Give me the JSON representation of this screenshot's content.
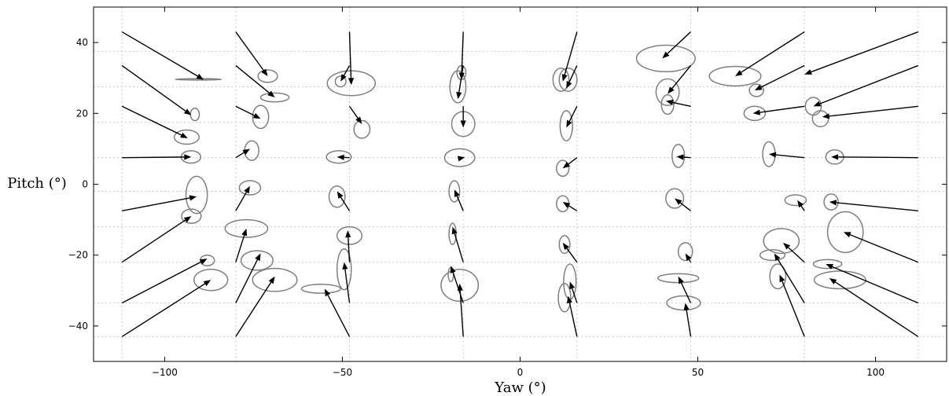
{
  "chart_data": {
    "type": "scatter",
    "xlabel": "Yaw (°)",
    "ylabel": "Pitch (°)",
    "xlim": [
      -120,
      120
    ],
    "ylim": [
      -50,
      50
    ],
    "xticks": [
      -100,
      -50,
      0,
      50,
      100
    ],
    "yticks": [
      -40,
      -20,
      0,
      20,
      40
    ],
    "xtick_labels": [
      "−100",
      "−50",
      "0",
      "50",
      "100"
    ],
    "ytick_labels": [
      "−40",
      "−20",
      "0",
      "20",
      "40"
    ],
    "grid": true,
    "grid_x": [
      -112,
      -80,
      -48,
      -16,
      16,
      48,
      80,
      112
    ],
    "grid_y": [
      -43,
      -33.5,
      -22,
      -12,
      -2,
      7.5,
      17.5,
      27.5,
      37.5
    ],
    "colors": {
      "arrow": "#000000",
      "ellipse": "#7f7f7f",
      "grid": "#cccccc"
    },
    "columns": [
      {
        "yaw_start": -112,
        "vectors": [
          {
            "pitch_start": 43,
            "to": [
              -89,
              29.5
            ],
            "ellipse": [
              -90.5,
              29.6,
              13,
              0.4
            ]
          },
          {
            "pitch_start": 33.5,
            "to": [
              -92.5,
              19.5
            ],
            "ellipse": [
              -91.5,
              19.7,
              2.5,
              3.5
            ]
          },
          {
            "pitch_start": 22,
            "to": [
              -93.5,
              13
            ],
            "ellipse": [
              -93.8,
              13.3,
              7,
              4
            ]
          },
          {
            "pitch_start": 7.5,
            "to": [
              -92.5,
              7.7
            ],
            "ellipse": [
              -92.6,
              7.7,
              5.5,
              3.5
            ]
          },
          {
            "pitch_start": -7.5,
            "to": [
              -91,
              -3.5
            ],
            "ellipse": [
              -91,
              -3,
              6,
              10.5
            ]
          },
          {
            "pitch_start": -22,
            "to": [
              -92.5,
              -9
            ],
            "ellipse": [
              -92.5,
              -9,
              5.5,
              4
            ]
          },
          {
            "pitch_start": -33.5,
            "to": [
              -88,
              -21
            ],
            "ellipse": [
              -88,
              -21.5,
              4,
              3
            ]
          },
          {
            "pitch_start": -43,
            "to": [
              -87,
              -27
            ],
            "ellipse": [
              -87,
              -27,
              9.5,
              6
            ]
          }
        ]
      },
      {
        "yaw_start": -80,
        "vectors": [
          {
            "pitch_start": 43,
            "to": [
              -71,
              30.5
            ],
            "ellipse": [
              -71,
              30.5,
              5.5,
              3.5
            ]
          },
          {
            "pitch_start": 33.5,
            "to": [
              -69,
              24.5
            ],
            "ellipse": [
              -69,
              24.5,
              8,
              2.5
            ]
          },
          {
            "pitch_start": 22,
            "to": [
              -73,
              18.5
            ],
            "ellipse": [
              -73,
              19,
              4.5,
              6.5
            ]
          },
          {
            "pitch_start": 7.5,
            "to": [
              -76,
              10
            ],
            "ellipse": [
              -75.5,
              9.5,
              4,
              5.5
            ]
          },
          {
            "pitch_start": -7.5,
            "to": [
              -76,
              -0.5
            ],
            "ellipse": [
              -76,
              -1,
              6,
              4
            ]
          },
          {
            "pitch_start": -22,
            "to": [
              -77,
              -12.5
            ],
            "ellipse": [
              -77,
              -12.5,
              12,
              5
            ]
          },
          {
            "pitch_start": -33.5,
            "to": [
              -73,
              -19.5
            ],
            "ellipse": [
              -74,
              -21.5,
              9,
              5.5
            ]
          },
          {
            "pitch_start": -43,
            "to": [
              -69,
              -26
            ],
            "ellipse": [
              -69,
              -27,
              12.5,
              6.5
            ]
          }
        ]
      },
      {
        "yaw_start": -48,
        "vectors": [
          {
            "pitch_start": 43,
            "to": [
              -47.5,
              28
            ],
            "ellipse": [
              -47.5,
              28.5,
              13.5,
              7
            ]
          },
          {
            "pitch_start": 33.5,
            "to": [
              -50.5,
              29
            ],
            "ellipse": [
              -50.5,
              29,
              3,
              3
            ]
          },
          {
            "pitch_start": 22,
            "to": [
              -44.5,
              17
            ],
            "ellipse": [
              -44.5,
              15.5,
              4.5,
              5
            ]
          },
          {
            "pitch_start": 7.5,
            "to": [
              -51.5,
              7.7
            ],
            "ellipse": [
              -51,
              7.7,
              7,
              3.5
            ]
          },
          {
            "pitch_start": -7.5,
            "to": [
              -51.5,
              -2
            ],
            "ellipse": [
              -51.5,
              -3.5,
              4.5,
              6
            ]
          },
          {
            "pitch_start": -22,
            "to": [
              -48.5,
              -13
            ],
            "ellipse": [
              -48,
              -14.5,
              7,
              5
            ]
          },
          {
            "pitch_start": -33.5,
            "to": [
              -49.5,
              -22
            ],
            "ellipse": [
              -49.5,
              -24,
              4,
              11.5
            ]
          },
          {
            "pitch_start": -43,
            "to": [
              -55,
              -29.5
            ],
            "ellipse": [
              -56,
              -29.5,
              11,
              2.5
            ]
          }
        ]
      },
      {
        "yaw_start": -16,
        "vectors": [
          {
            "pitch_start": 43,
            "to": [
              -16.5,
              29.5
            ],
            "ellipse": [
              -16.5,
              31.5,
              2.5,
              4
            ]
          },
          {
            "pitch_start": 33.5,
            "to": [
              -17.5,
              24
            ],
            "ellipse": [
              -17.5,
              27.5,
              4.5,
              9
            ]
          },
          {
            "pitch_start": 22,
            "to": [
              -16,
              16
            ],
            "ellipse": [
              -16,
              17,
              6.5,
              7
            ]
          },
          {
            "pitch_start": 7.5,
            "to": [
              -15.5,
              7.6
            ],
            "ellipse": [
              -17,
              7.5,
              8.5,
              5
            ]
          },
          {
            "pitch_start": -7.5,
            "to": [
              -18.5,
              -1.5
            ],
            "ellipse": [
              -18.5,
              -2,
              3,
              6
            ]
          },
          {
            "pitch_start": -22,
            "to": [
              -19,
              -12
            ],
            "ellipse": [
              -19,
              -14,
              2,
              6
            ]
          },
          {
            "pitch_start": -33.5,
            "to": [
              -19.5,
              -23
            ],
            "ellipse": [
              -19.5,
              -25.5,
              1.5,
              4
            ]
          },
          {
            "pitch_start": -43,
            "to": [
              -17,
              -28
            ],
            "ellipse": [
              -17,
              -28.5,
              10.5,
              9
            ]
          }
        ]
      },
      {
        "yaw_start": 16,
        "vectors": [
          {
            "pitch_start": 43,
            "to": [
              12,
              29
            ],
            "ellipse": [
              11.5,
              29.5,
              4.5,
              6.5
            ]
          },
          {
            "pitch_start": 33.5,
            "to": [
              13,
              27
            ],
            "ellipse": [
              13.5,
              29.5,
              5,
              6.5
            ]
          },
          {
            "pitch_start": 22,
            "to": [
              13,
              16
            ],
            "ellipse": [
              13,
              16.5,
              3.5,
              8.5
            ]
          },
          {
            "pitch_start": 7.5,
            "to": [
              12,
              4.5
            ],
            "ellipse": [
              12,
              4.5,
              3.5,
              4.5
            ]
          },
          {
            "pitch_start": -7.5,
            "to": [
              12,
              -5
            ],
            "ellipse": [
              12,
              -5.5,
              3.5,
              4.5
            ]
          },
          {
            "pitch_start": -22,
            "to": [
              12,
              -16.5
            ],
            "ellipse": [
              12.5,
              -17,
              3,
              5
            ]
          },
          {
            "pitch_start": -33.5,
            "to": [
              14,
              -27.5
            ],
            "ellipse": [
              14,
              -27.5,
              3.5,
              10
            ]
          },
          {
            "pitch_start": -43,
            "to": [
              13.5,
              -31.5
            ],
            "ellipse": [
              12.5,
              -32,
              3.5,
              8
            ]
          }
        ]
      },
      {
        "yaw_start": 48,
        "vectors": [
          {
            "pitch_start": 43,
            "to": [
              40,
              35.5
            ],
            "ellipse": [
              41,
              35.5,
              16.5,
              7.5
            ]
          },
          {
            "pitch_start": 33.5,
            "to": [
              41.5,
              25.5
            ],
            "ellipse": [
              41.5,
              26,
              6.5,
              7.5
            ]
          },
          {
            "pitch_start": 22,
            "to": [
              41,
              23.5
            ],
            "ellipse": [
              41.5,
              22.5,
              3.5,
              5.5
            ]
          },
          {
            "pitch_start": 7.5,
            "to": [
              44,
              7.8
            ],
            "ellipse": [
              44.5,
              8,
              3.5,
              6.5
            ]
          },
          {
            "pitch_start": -7.5,
            "to": [
              43.5,
              -4
            ],
            "ellipse": [
              43.5,
              -4,
              5,
              5.5
            ]
          },
          {
            "pitch_start": -22,
            "to": [
              46.5,
              -19.5
            ],
            "ellipse": [
              46.5,
              -19,
              4,
              5
            ]
          },
          {
            "pitch_start": -33.5,
            "to": [
              44.5,
              -26
            ],
            "ellipse": [
              44.5,
              -26.5,
              11.5,
              2.5
            ]
          },
          {
            "pitch_start": -43,
            "to": [
              46.5,
              -33.5
            ],
            "ellipse": [
              46,
              -33.5,
              9.5,
              4
            ]
          }
        ]
      },
      {
        "yaw_start": 80,
        "vectors": [
          {
            "pitch_start": 43,
            "to": [
              60.5,
              30.5
            ],
            "ellipse": [
              60.5,
              30.5,
              14.5,
              5.5
            ]
          },
          {
            "pitch_start": 33.5,
            "to": [
              66,
              26.5
            ],
            "ellipse": [
              66.5,
              26.5,
              4,
              3.5
            ]
          },
          {
            "pitch_start": 22,
            "to": [
              65.5,
              20
            ],
            "ellipse": [
              66,
              20,
              6,
              4
            ]
          },
          {
            "pitch_start": 7.5,
            "to": [
              70,
              8.5
            ],
            "ellipse": [
              70,
              8.5,
              3.5,
              7
            ]
          },
          {
            "pitch_start": -7.5,
            "to": [
              78,
              -4.5
            ],
            "ellipse": [
              77.5,
              -4.5,
              6,
              3
            ]
          },
          {
            "pitch_start": -22,
            "to": [
              74,
              -16.5
            ],
            "ellipse": [
              73.5,
              -16,
              10,
              7
            ]
          },
          {
            "pitch_start": -33.5,
            "to": [
              71.5,
              -19.5
            ],
            "ellipse": [
              71,
              -20,
              7,
              3
            ]
          },
          {
            "pitch_start": -43,
            "to": [
              73,
              -25.5
            ],
            "ellipse": [
              72.5,
              -26,
              4.5,
              7
            ]
          }
        ]
      },
      {
        "yaw_start": 112,
        "vectors": [
          {
            "pitch_start": 43,
            "to": [
              80,
              31
            ],
            "ellipse": null
          },
          {
            "pitch_start": 33.5,
            "to": [
              82.5,
              22
            ],
            "ellipse": [
              82.5,
              22,
              4.5,
              5
            ]
          },
          {
            "pitch_start": 22,
            "to": [
              85,
              19
            ],
            "ellipse": [
              84.5,
              18.5,
              4.5,
              4.5
            ]
          },
          {
            "pitch_start": 7.5,
            "to": [
              87.5,
              7.7
            ],
            "ellipse": [
              88.5,
              7.7,
              5,
              4
            ]
          },
          {
            "pitch_start": -7.5,
            "to": [
              87,
              -5
            ],
            "ellipse": [
              87.5,
              -5,
              4,
              4.5
            ]
          },
          {
            "pitch_start": -22,
            "to": [
              91,
              -13.5
            ],
            "ellipse": [
              91.5,
              -13.5,
              10,
              11.5
            ]
          },
          {
            "pitch_start": -33.5,
            "to": [
              86,
              -22.5
            ],
            "ellipse": [
              86.5,
              -22.5,
              8,
              2.5
            ]
          },
          {
            "pitch_start": -43,
            "to": [
              87,
              -26.5
            ],
            "ellipse": [
              90,
              -27,
              14.5,
              5
            ]
          }
        ]
      }
    ]
  }
}
